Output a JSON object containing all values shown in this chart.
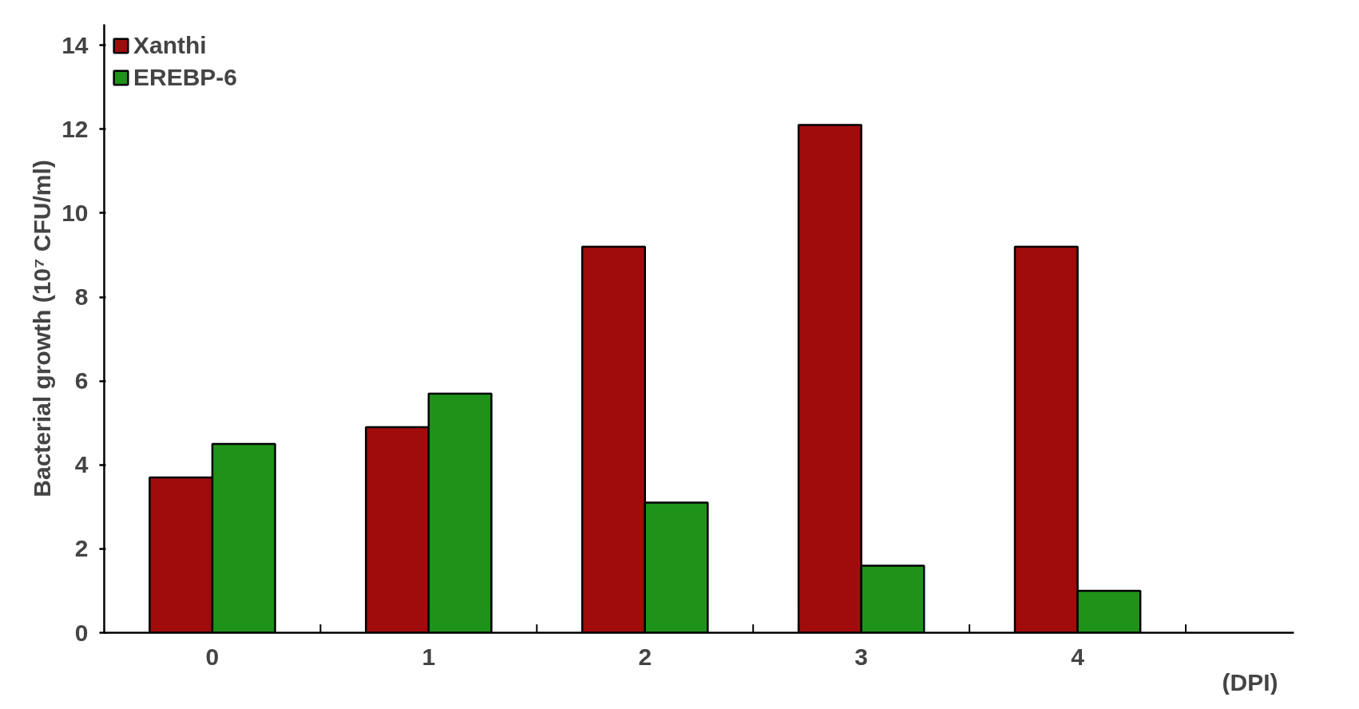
{
  "chart_data": {
    "type": "bar",
    "categories": [
      "0",
      "1",
      "2",
      "3",
      "4"
    ],
    "xlabel": "(DPI)",
    "ylabel": "Bacterial growth (10⁷ CFU/ml)",
    "series": [
      {
        "name": "Xanthi",
        "color": "#a00c0c",
        "values": [
          3.7,
          4.9,
          9.2,
          12.1,
          9.2
        ]
      },
      {
        "name": "EREBP-6",
        "color": "#1f921a",
        "values": [
          4.5,
          5.7,
          3.1,
          1.6,
          1.0
        ]
      }
    ],
    "ylim": [
      0,
      14.5
    ],
    "yticks": [
      0,
      2,
      4,
      6,
      8,
      10,
      12,
      14
    ],
    "grid": false,
    "legend": "top left"
  }
}
